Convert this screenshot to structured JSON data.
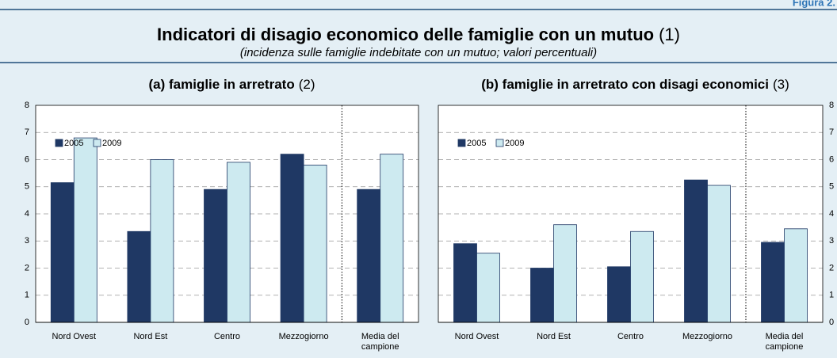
{
  "header": {
    "figure_label": "Figura 2.",
    "title": "Indicatori di disagio economico delle famiglie con un mutuo",
    "title_note": "(1)",
    "subtitle": "(incidenza sulle famiglie indebitate con un mutuo; valori percentuali)"
  },
  "chart_data": [
    {
      "type": "bar",
      "title": "(a) famiglie in arretrato",
      "title_note": "(2)",
      "categories": [
        "Nord Ovest",
        "Nord Est",
        "Centro",
        "Mezzogiorno",
        "Media del campione"
      ],
      "series": [
        {
          "name": "2005",
          "color": "#1f3864",
          "values": [
            5.15,
            3.35,
            4.9,
            6.2,
            4.9
          ]
        },
        {
          "name": "2009",
          "color": "#cdeaf0",
          "values": [
            6.8,
            6.0,
            5.9,
            5.8,
            6.2
          ]
        }
      ],
      "ylim": [
        0,
        8
      ],
      "yticks": [
        0,
        1,
        2,
        3,
        4,
        5,
        6,
        7,
        8
      ],
      "grid": true,
      "legend": "upper-left",
      "y_axis_side": "left"
    },
    {
      "type": "bar",
      "title": "(b) famiglie in arretrato con disagi economici",
      "title_note": "(3)",
      "categories": [
        "Nord Ovest",
        "Nord Est",
        "Centro",
        "Mezzogiorno",
        "Media del campione"
      ],
      "series": [
        {
          "name": "2005",
          "color": "#1f3864",
          "values": [
            2.9,
            2.0,
            2.05,
            5.25,
            2.95
          ]
        },
        {
          "name": "2009",
          "color": "#cdeaf0",
          "values": [
            2.55,
            3.6,
            3.35,
            5.05,
            3.45
          ]
        }
      ],
      "ylim": [
        0,
        8
      ],
      "yticks": [
        0,
        1,
        2,
        3,
        4,
        5,
        6,
        7,
        8
      ],
      "grid": true,
      "legend": "upper-left",
      "y_axis_side": "right"
    }
  ]
}
